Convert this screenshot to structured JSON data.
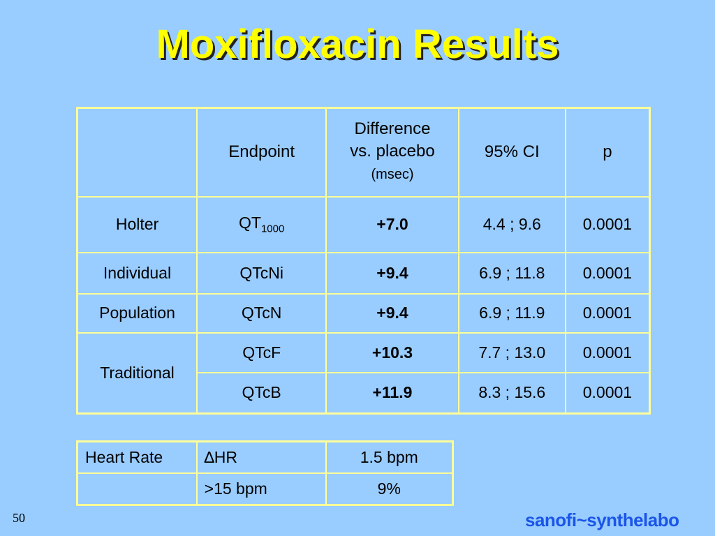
{
  "slide": {
    "title": "Moxifloxacin Results",
    "page_number": "50",
    "logo_text": "sanofi~synthelabo"
  },
  "results_table": {
    "headers": {
      "col1": "",
      "endpoint": "Endpoint",
      "difference_line1": "Difference",
      "difference_line2": "vs. placebo",
      "difference_unit": "(msec)",
      "ci": "95% CI",
      "p": "p"
    },
    "rows": [
      {
        "method": "Holter",
        "endpoint_main": "QT",
        "endpoint_sub": "1000",
        "difference": "+7.0",
        "ci": "4.4 ; 9.6",
        "p": "0.0001"
      },
      {
        "method": "Individual",
        "endpoint_main": "QTcNi",
        "endpoint_sub": "",
        "difference": "+9.4",
        "ci": "6.9 ; 11.8",
        "p": "0.0001"
      },
      {
        "method": "Population",
        "endpoint_main": "QTcN",
        "endpoint_sub": "",
        "difference": "+9.4",
        "ci": "6.9 ; 11.9",
        "p": "0.0001"
      },
      {
        "method": "Traditional",
        "endpoint_main": "QTcF",
        "endpoint_sub": "",
        "difference": "+10.3",
        "ci": "7.7 ; 13.0",
        "p": "0.0001"
      },
      {
        "method": "",
        "endpoint_main": "QTcB",
        "endpoint_sub": "",
        "difference": "+11.9",
        "ci": "8.3 ; 15.6",
        "p": "0.0001"
      }
    ]
  },
  "heart_rate_table": {
    "rows": [
      {
        "label": "Heart Rate",
        "measure": "∆HR",
        "value": "1.5 bpm"
      },
      {
        "label": "",
        "measure": ">15 bpm",
        "value": "9%"
      }
    ]
  },
  "colors": {
    "background": "#99ccff",
    "title": "#ffff00",
    "table_border": "#ffff99",
    "logo": "#1a55e8"
  }
}
